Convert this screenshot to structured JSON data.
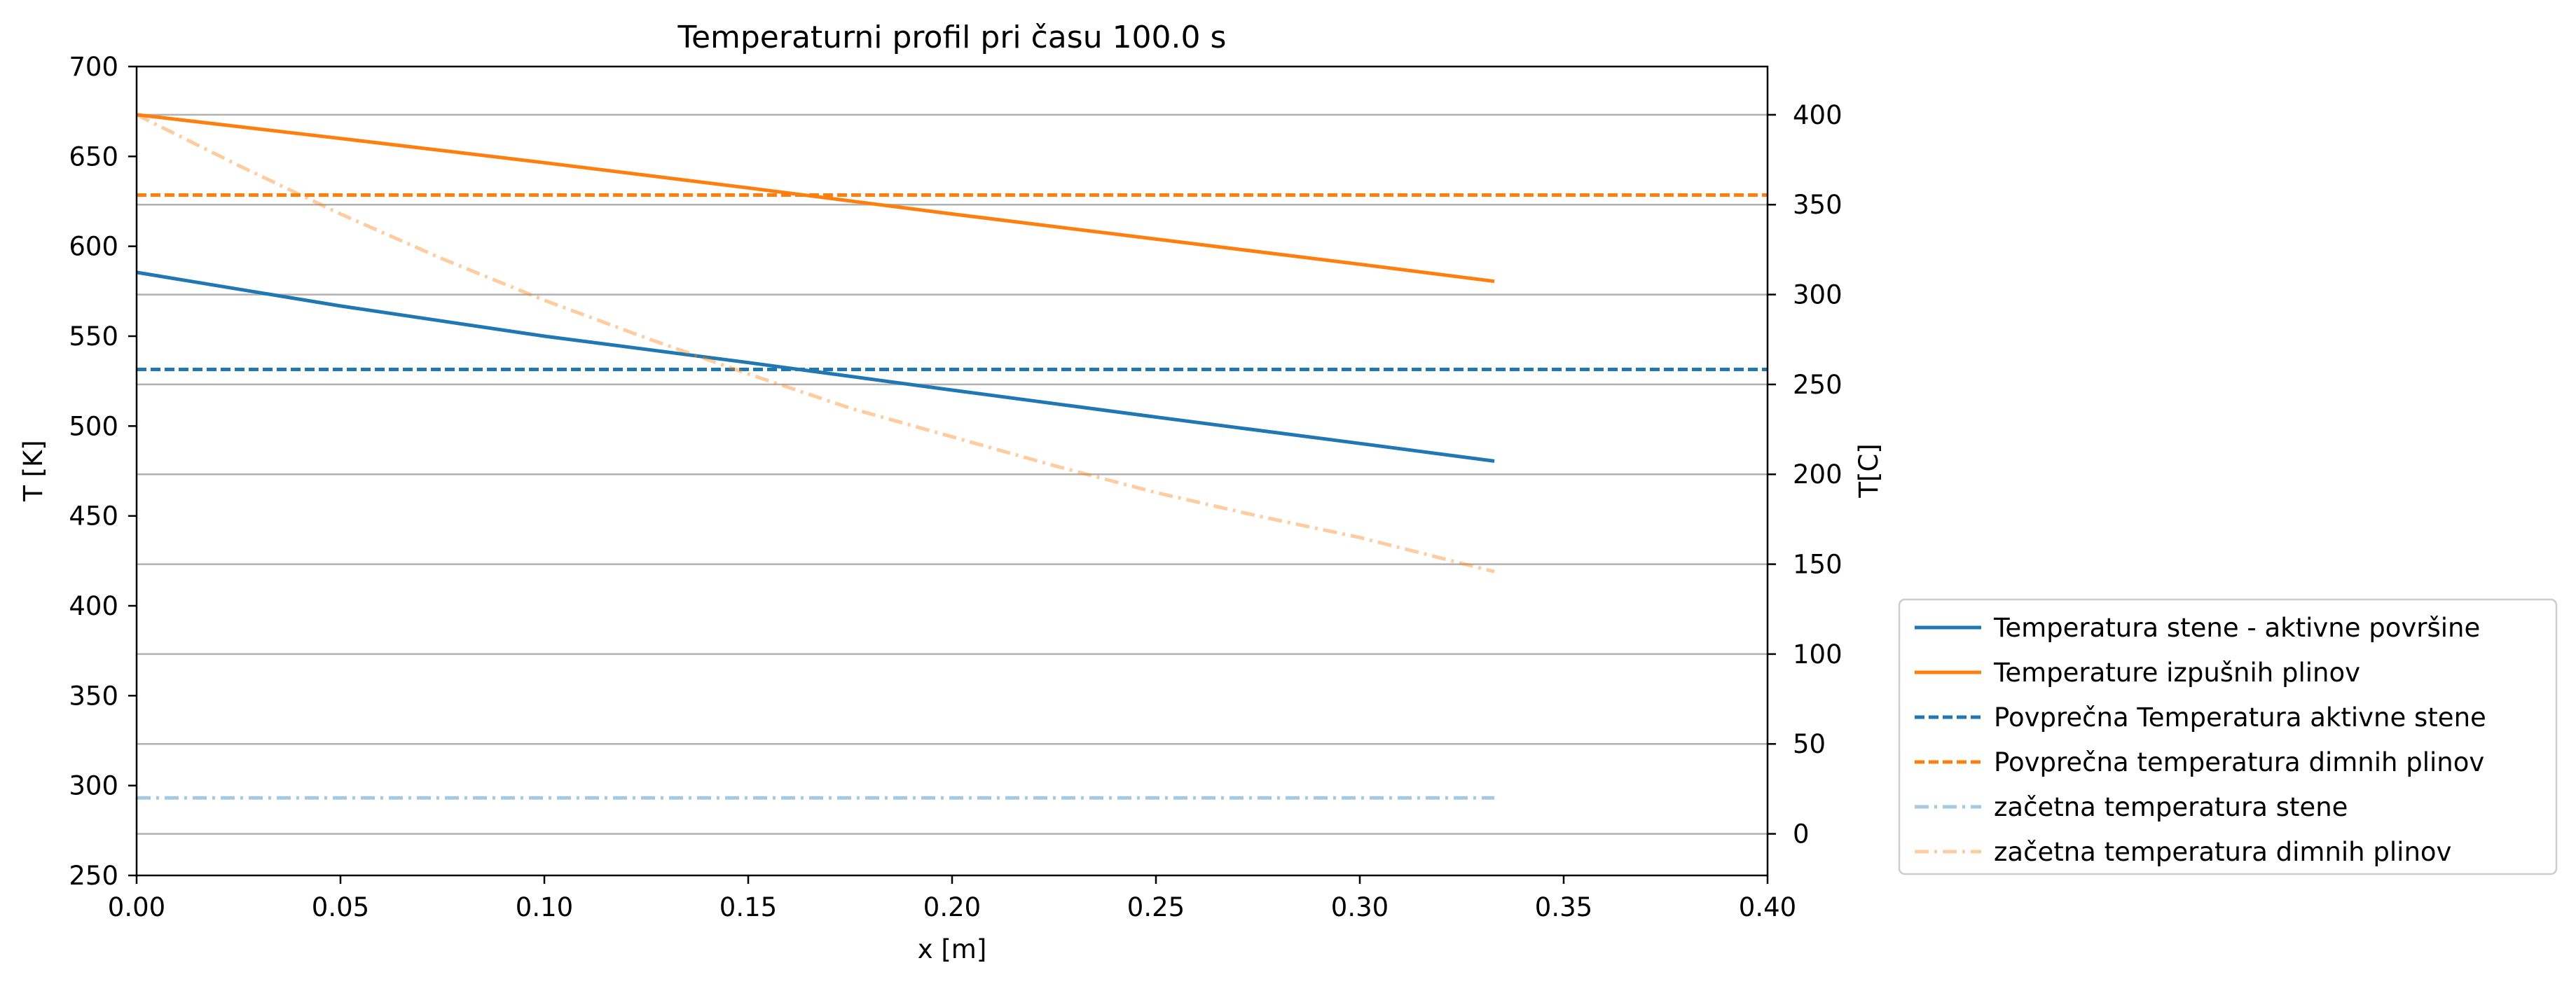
{
  "chart_data": {
    "type": "line",
    "title": "Temperaturni profil pri času 100.0 s",
    "xlabel": "x [m]",
    "ylabel": "T [K]",
    "y2label": "T[C]",
    "xlim": [
      0.0,
      0.4
    ],
    "ylim": [
      250,
      700
    ],
    "y2lim": [
      -23.15,
      426.85
    ],
    "grid": "horizontal lines at secondary-axis ticks",
    "legend_position": "outside lower-right",
    "x_ticks": [
      "0.00",
      "0.05",
      "0.10",
      "0.15",
      "0.20",
      "0.25",
      "0.30",
      "0.35",
      "0.40"
    ],
    "y_ticks": [
      "250",
      "300",
      "350",
      "400",
      "450",
      "500",
      "550",
      "600",
      "650",
      "700"
    ],
    "y2_ticks": [
      "0",
      "50",
      "100",
      "150",
      "200",
      "250",
      "300",
      "350",
      "400"
    ],
    "series": [
      {
        "name": "Temperatura stene - aktivne površine",
        "color": "#1f77b4",
        "style": "solid",
        "alpha": 1,
        "points": [
          [
            0.0,
            585.5
          ],
          [
            0.05,
            566.8
          ],
          [
            0.1,
            550.0
          ],
          [
            0.15,
            535.3
          ],
          [
            0.2,
            520.0
          ],
          [
            0.25,
            505.0
          ],
          [
            0.3,
            490.3
          ],
          [
            0.333,
            480.5
          ]
        ]
      },
      {
        "name": "Temperature izpušnih plinov",
        "color": "#ff7f0e",
        "style": "solid",
        "alpha": 1,
        "points": [
          [
            0.0,
            673.2
          ],
          [
            0.05,
            660.0
          ],
          [
            0.1,
            646.5
          ],
          [
            0.15,
            632.5
          ],
          [
            0.2,
            618.0
          ],
          [
            0.25,
            604.0
          ],
          [
            0.3,
            590.0
          ],
          [
            0.333,
            580.5
          ]
        ]
      },
      {
        "name": "Povprečna Temperatura aktivne stene",
        "color": "#1f77b4",
        "style": "dashed",
        "alpha": 1,
        "points": [
          [
            0.0,
            531.5
          ],
          [
            0.4,
            531.5
          ]
        ]
      },
      {
        "name": "Povprečna temperatura dimnih plinov",
        "color": "#ff7f0e",
        "style": "dashed",
        "alpha": 1,
        "points": [
          [
            0.0,
            628.5
          ],
          [
            0.4,
            628.5
          ]
        ]
      },
      {
        "name": "začetna temperatura stene",
        "color": "#1f77b4",
        "style": "dashdot",
        "alpha": 0.4,
        "points": [
          [
            0.0,
            293.15
          ],
          [
            0.333,
            293.15
          ]
        ]
      },
      {
        "name": "začetna temperatura dimnih plinov",
        "color": "#ff7f0e",
        "style": "dashdot",
        "alpha": 0.4,
        "points": [
          [
            0.0,
            673.2
          ],
          [
            0.025,
            645.0
          ],
          [
            0.05,
            618.0
          ],
          [
            0.075,
            593.0
          ],
          [
            0.1,
            570.0
          ],
          [
            0.125,
            549.0
          ],
          [
            0.15,
            529.0
          ],
          [
            0.175,
            510.0
          ],
          [
            0.2,
            494.0
          ],
          [
            0.225,
            478.0
          ],
          [
            0.25,
            463.0
          ],
          [
            0.275,
            450.0
          ],
          [
            0.3,
            438.0
          ],
          [
            0.333,
            419.0
          ]
        ]
      }
    ]
  }
}
